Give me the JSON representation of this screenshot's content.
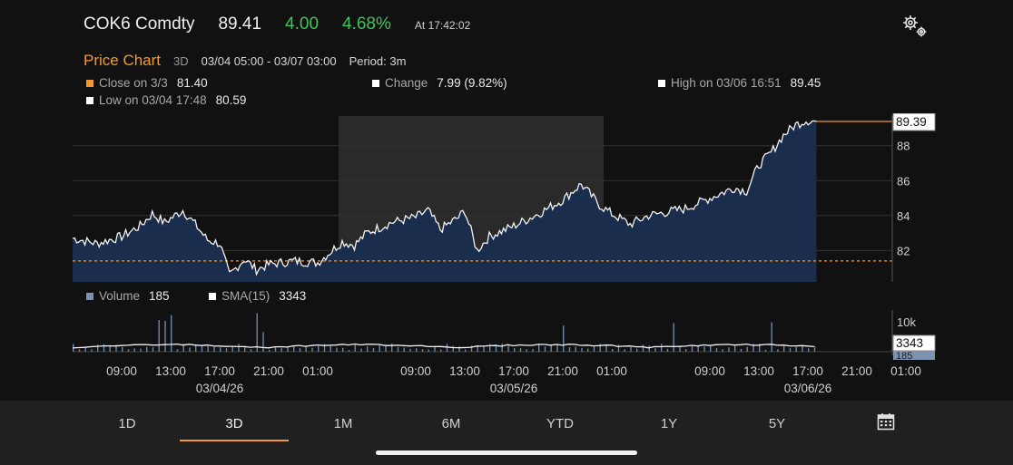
{
  "header": {
    "ticker": "COK6 Comdty",
    "price": "89.41",
    "change": "4.00",
    "change_pct": "4.68%",
    "timestamp": "At 17:42:02",
    "settings_icon": "gear-icon"
  },
  "chart_header": {
    "title": "Price Chart",
    "range_label": "3D",
    "date_range": "03/04 05:00 - 03/07 03:00",
    "period": "Period: 3m"
  },
  "legend": {
    "close": {
      "label": "Close on 3/3",
      "value": "81.40",
      "color": "#f39a2d"
    },
    "change": {
      "label": "Change",
      "value": "7.99 (9.82%)",
      "color": "#ffffff"
    },
    "high": {
      "label": "High on 03/06 16:51",
      "value": "89.45",
      "color": "#ffffff"
    },
    "low": {
      "label": "Low on 03/04 17:48",
      "value": "80.59",
      "color": "#ffffff"
    }
  },
  "volume_legend": {
    "volume": {
      "label": "Volume",
      "value": "185",
      "color": "#7d92b0"
    },
    "sma": {
      "label": "SMA(15)",
      "value": "3343",
      "color": "#ffffff"
    }
  },
  "colors": {
    "up": "#3ec65a",
    "accent": "#f39a2d",
    "area_fill": "#1b2d4d",
    "line": "#f2f2f2",
    "highlight_band": "#2a2a2a"
  },
  "chart_data": {
    "type": "area",
    "price_axis": {
      "ticks": [
        82,
        84,
        86,
        88
      ],
      "ylim": [
        80.2,
        89.7
      ],
      "last_price_label": "89.39",
      "last_price": 89.39,
      "reference_close": 81.4
    },
    "volume_axis": {
      "ticks": [
        "10k"
      ],
      "sma_label": "3343",
      "volume_label": "185"
    },
    "x_tick_labels": [
      "09:00",
      "13:00",
      "17:00",
      "21:00",
      "01:00",
      "09:00",
      "13:00",
      "17:00",
      "21:00",
      "01:00",
      "09:00",
      "13:00",
      "17:00",
      "21:00",
      "01:00"
    ],
    "date_labels": [
      "03/04/26",
      "03/05/26",
      "03/06/26"
    ],
    "price_series": {
      "name": "Price",
      "points": [
        [
          "03/04 05:00",
          82.7
        ],
        [
          "03/04 07:00",
          82.4
        ],
        [
          "03/04 09:00",
          82.8
        ],
        [
          "03/04 10:30",
          83.4
        ],
        [
          "03/04 11:30",
          84.1
        ],
        [
          "03/04 12:30",
          83.6
        ],
        [
          "03/04 14:00",
          84.3
        ],
        [
          "03/04 15:00",
          83.5
        ],
        [
          "03/04 16:00",
          82.6
        ],
        [
          "03/04 17:00",
          82.4
        ],
        [
          "03/04 17:48",
          80.59
        ],
        [
          "03/04 19:00",
          81.5
        ],
        [
          "03/04 20:00",
          80.9
        ],
        [
          "03/04 21:00",
          81.2
        ],
        [
          "03/04 23:00",
          81.4
        ],
        [
          "03/05 01:00",
          81.3
        ],
        [
          "03/05 02:00",
          81.9
        ],
        [
          "03/05 03:00",
          82.5
        ],
        [
          "03/05 04:00",
          82.3
        ],
        [
          "03/05 05:00",
          83.0
        ],
        [
          "03/05 07:00",
          83.6
        ],
        [
          "03/05 09:00",
          83.9
        ],
        [
          "03/05 10:00",
          84.3
        ],
        [
          "03/05 11:00",
          83.2
        ],
        [
          "03/05 12:30",
          83.9
        ],
        [
          "03/05 13:00",
          84.3
        ],
        [
          "03/05 14:00",
          82.0
        ],
        [
          "03/05 15:00",
          82.8
        ],
        [
          "03/05 17:00",
          83.4
        ],
        [
          "03/05 19:00",
          84.1
        ],
        [
          "03/05 21:00",
          84.9
        ],
        [
          "03/05 22:30",
          85.8
        ],
        [
          "03/06 00:00",
          84.6
        ],
        [
          "03/06 01:00",
          84.1
        ],
        [
          "03/06 02:30",
          83.5
        ],
        [
          "03/06 04:00",
          84.0
        ],
        [
          "03/06 07:00",
          84.4
        ],
        [
          "03/06 09:00",
          85.0
        ],
        [
          "03/06 11:00",
          85.6
        ],
        [
          "03/06 12:00",
          85.4
        ],
        [
          "03/06 13:00",
          86.9
        ],
        [
          "03/06 14:00",
          87.6
        ],
        [
          "03/06 15:00",
          88.6
        ],
        [
          "03/06 16:00",
          89.2
        ],
        [
          "03/06 16:51",
          89.45
        ],
        [
          "03/06 17:42",
          89.39
        ]
      ]
    },
    "volume_series": {
      "name": "Volume"
    },
    "sma_series": {
      "name": "SMA(15)"
    }
  },
  "periods": {
    "items": [
      "1D",
      "3D",
      "1M",
      "6M",
      "YTD",
      "1Y",
      "5Y"
    ],
    "active": "3D",
    "calendar_icon": "calendar-icon"
  }
}
